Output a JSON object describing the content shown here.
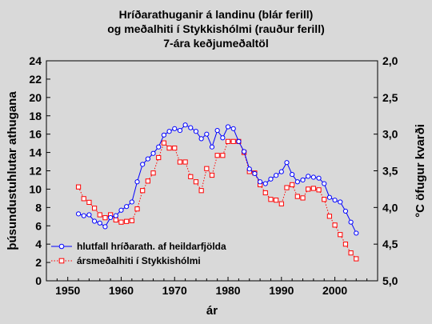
{
  "chart_data": {
    "type": "line",
    "title_lines": [
      "Hríðarathuganir á landinu (blár ferill)",
      "og meðalhiti í Stykkishólmi (rauður ferill)",
      "7-ára keðjumeðaltöl"
    ],
    "xlabel": "ár",
    "ylabel_left": "þúsundustuhlutar athugana",
    "ylabel_right": "°C öfugur kvarði",
    "xlim": [
      1946,
      2008
    ],
    "x_ticks": [
      1950,
      1960,
      1970,
      1980,
      1990,
      2000
    ],
    "ylim_left": [
      0,
      24
    ],
    "y_ticks_left": [
      0,
      2,
      4,
      6,
      8,
      10,
      12,
      14,
      16,
      18,
      20,
      22,
      24
    ],
    "ylim_right": [
      5.0,
      2.0
    ],
    "y_ticks_right": [
      "2,0",
      "2,5",
      "3,0",
      "3,5",
      "4,0",
      "4,5",
      "5,0"
    ],
    "grid": false,
    "legend_position": "bottom-left",
    "series": [
      {
        "name": "hlutfall hríðarath. af heildarfjölda",
        "axis": "left",
        "color": "#0000ff",
        "marker": "circle",
        "x": [
          1952,
          1953,
          1954,
          1955,
          1956,
          1957,
          1958,
          1959,
          1960,
          1961,
          1962,
          1963,
          1964,
          1965,
          1966,
          1967,
          1968,
          1969,
          1970,
          1971,
          1972,
          1973,
          1974,
          1975,
          1976,
          1977,
          1978,
          1979,
          1980,
          1981,
          1982,
          1983,
          1984,
          1985,
          1986,
          1987,
          1988,
          1989,
          1990,
          1991,
          1992,
          1993,
          1994,
          1995,
          1996,
          1997,
          1998,
          1999,
          2000,
          2001,
          2002,
          2003,
          2004
        ],
        "y": [
          7.3,
          7.1,
          7.2,
          6.5,
          6.3,
          5.9,
          6.9,
          7.1,
          7.7,
          8.1,
          8.6,
          10.8,
          12.7,
          13.3,
          13.9,
          14.6,
          15.9,
          16.3,
          16.6,
          16.4,
          17.0,
          16.7,
          16.3,
          15.5,
          16.0,
          14.6,
          16.4,
          15.6,
          16.8,
          16.6,
          15.2,
          14.1,
          12.2,
          11.7,
          10.8,
          10.6,
          11.1,
          11.5,
          11.9,
          12.9,
          11.6,
          10.8,
          11.0,
          11.4,
          11.3,
          11.2,
          10.6,
          9.1,
          8.8,
          8.6,
          7.6,
          6.4,
          5.2
        ]
      },
      {
        "name": "ársmeðalhiti í Stykkishólmi",
        "axis": "right",
        "color": "#ff0000",
        "marker": "square",
        "x": [
          1952,
          1953,
          1954,
          1955,
          1956,
          1957,
          1958,
          1959,
          1960,
          1961,
          1962,
          1963,
          1964,
          1965,
          1966,
          1967,
          1968,
          1969,
          1970,
          1971,
          1972,
          1973,
          1974,
          1975,
          1976,
          1977,
          1978,
          1979,
          1980,
          1981,
          1982,
          1983,
          1984,
          1985,
          1986,
          1987,
          1988,
          1989,
          1990,
          1991,
          1992,
          1993,
          1994,
          1995,
          1996,
          1997,
          1998,
          1999,
          2000,
          2001,
          2002,
          2003,
          2004
        ],
        "y": [
          3.72,
          3.88,
          3.93,
          4.01,
          4.1,
          4.14,
          4.1,
          4.17,
          4.2,
          4.19,
          4.18,
          4.02,
          3.77,
          3.64,
          3.53,
          3.32,
          3.12,
          3.19,
          3.19,
          3.38,
          3.38,
          3.58,
          3.65,
          3.77,
          3.47,
          3.56,
          3.29,
          3.29,
          3.1,
          3.1,
          3.1,
          3.25,
          3.51,
          3.53,
          3.69,
          3.8,
          3.89,
          3.9,
          3.95,
          3.73,
          3.69,
          3.85,
          3.87,
          3.75,
          3.74,
          3.76,
          3.89,
          4.12,
          4.24,
          4.37,
          4.5,
          4.62,
          4.7
        ]
      }
    ]
  }
}
